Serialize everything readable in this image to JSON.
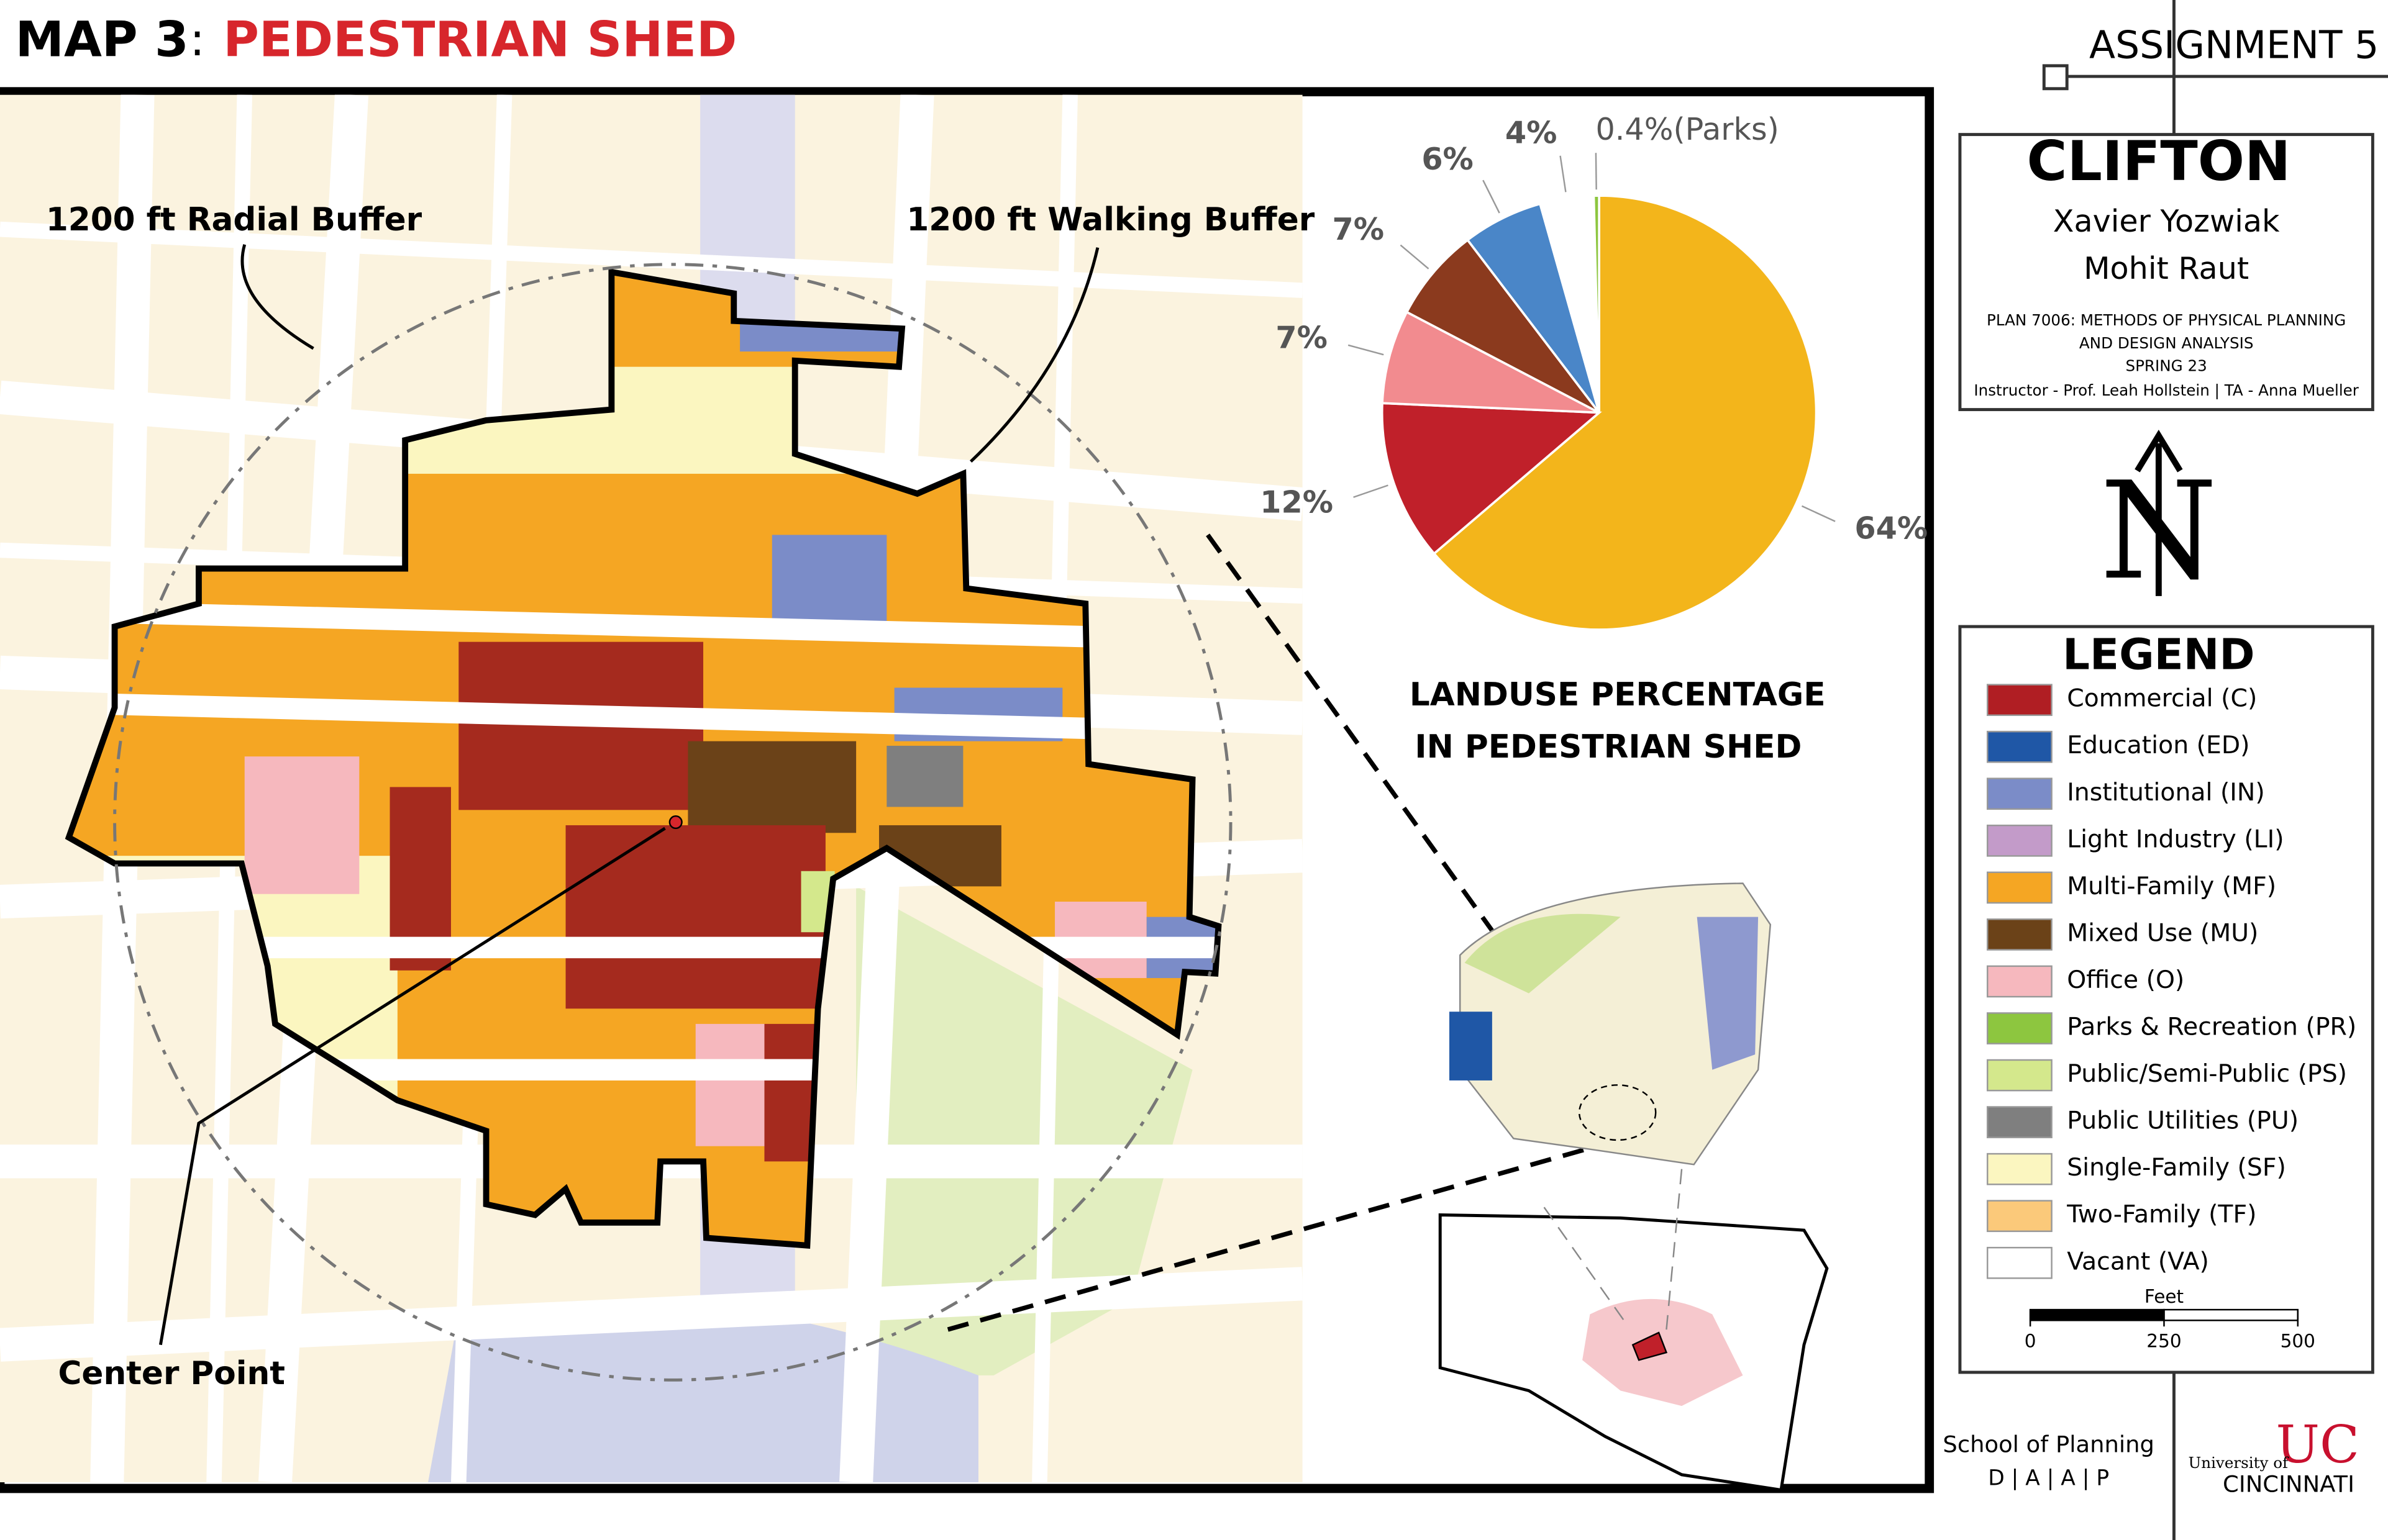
{
  "header": {
    "map_number": "MAP 3",
    "separator": ":",
    "map_title": "PEDESTRIAN SHED",
    "assignment": "ASSIGNMENT 5"
  },
  "title_block": {
    "place": "CLIFTON",
    "authors": [
      "Xavier Yozwiak",
      "Mohit Raut"
    ],
    "course": [
      "PLAN  7006: METHODS OF PHYSICAL PLANNING",
      "AND DESIGN ANALYSIS",
      "SPRING 23"
    ],
    "instructors": "Instructor - Prof. Leah Hollstein | TA - Anna Mueller"
  },
  "north_arrow": "N",
  "map_labels": {
    "radial_buffer": "1200 ft Radial Buffer",
    "walking_buffer": "1200 ft Walking Buffer",
    "center_point": "Center Point"
  },
  "pie": {
    "type": "pie",
    "title": [
      "LANDUSE PERCENTAGE",
      "IN PEDESTRIAN SHED"
    ],
    "values": [
      64,
      12,
      7,
      7,
      6,
      4,
      0.4
    ],
    "value_labels": [
      "64%",
      "12%",
      "7%",
      "7%",
      "6%",
      "4%",
      "0.4%(Parks)"
    ],
    "colors": [
      "#f3b51b",
      "#c0202a",
      "#f28b8f",
      "#8b3a1e",
      "#4a86c8",
      "#ffffff",
      "#8dc63f"
    ]
  },
  "legend": {
    "title": "LEGEND",
    "items": [
      {
        "label": "Commercial (C)",
        "color": "#b01e23"
      },
      {
        "label": "Education (ED)",
        "color": "#1f57a6"
      },
      {
        "label": "Institutional (IN)",
        "color": "#7b8cc8"
      },
      {
        "label": "Light Industry (LI)",
        "color": "#c39bc9"
      },
      {
        "label": "Multi-Family (MF)",
        "color": "#f5a623"
      },
      {
        "label": "Mixed Use (MU)",
        "color": "#6b4218"
      },
      {
        "label": "Office (O)",
        "color": "#f6b8be"
      },
      {
        "label": "Parks & Recreation (PR)",
        "color": "#8dc63f"
      },
      {
        "label": "Public/Semi-Public (PS)",
        "color": "#d4e88c"
      },
      {
        "label": "Public Utilities (PU)",
        "color": "#7f7f7f"
      },
      {
        "label": "Single-Family (SF)",
        "color": "#fbf6c0"
      },
      {
        "label": "Two-Family (TF)",
        "color": "#fbc97a"
      },
      {
        "label": "Vacant (VA)",
        "color": "#ffffff"
      }
    ]
  },
  "scale_bar": {
    "unit": "Feet",
    "ticks": [
      0,
      250,
      500
    ]
  },
  "footer": {
    "school": "School of Planning",
    "daap": "D  |  A  |  A  |  P",
    "university_of": "University of",
    "university": "CINCINNATI"
  }
}
